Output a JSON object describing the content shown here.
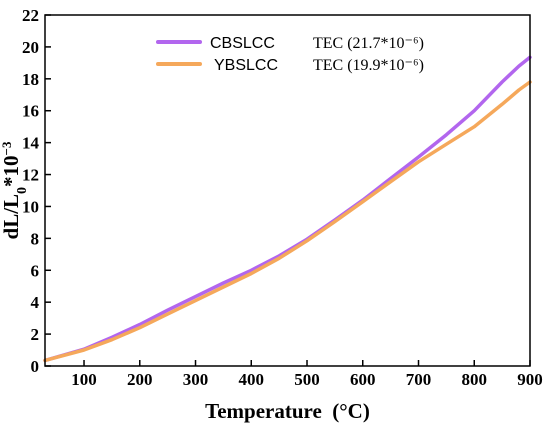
{
  "chart_data": {
    "type": "line",
    "xlabel": "Temperature  (°C)",
    "ylabel": {
      "a": "dL/L",
      "sub": "0",
      "b": "*10",
      "sup": "−3"
    },
    "xlim": [
      30,
      900
    ],
    "ylim": [
      0,
      22
    ],
    "xticks": [
      100,
      200,
      300,
      400,
      500,
      600,
      700,
      800,
      900
    ],
    "yticks": [
      0,
      2,
      4,
      6,
      8,
      10,
      12,
      14,
      16,
      18,
      20,
      22
    ],
    "legend": "top-center",
    "series": [
      {
        "name": "CBSLCC",
        "tec": "TEC (21.7*10⁻⁶)",
        "color": "#b266ee",
        "x": [
          30,
          100,
          150,
          200,
          250,
          300,
          350,
          400,
          450,
          500,
          550,
          600,
          650,
          700,
          750,
          800,
          850,
          880,
          900
        ],
        "y": [
          0.35,
          1.05,
          1.8,
          2.6,
          3.5,
          4.35,
          5.2,
          6.0,
          6.9,
          7.95,
          9.15,
          10.4,
          11.75,
          13.1,
          14.5,
          16.0,
          17.8,
          18.8,
          19.35
        ]
      },
      {
        "name": "YBSLCC",
        "tec": "TEC (19.9*10⁻⁶)",
        "color": "#f5a85b",
        "x": [
          30,
          100,
          150,
          200,
          250,
          300,
          350,
          400,
          450,
          500,
          550,
          600,
          650,
          700,
          750,
          800,
          850,
          880,
          900
        ],
        "y": [
          0.35,
          1.0,
          1.65,
          2.4,
          3.25,
          4.1,
          4.95,
          5.8,
          6.75,
          7.85,
          9.05,
          10.3,
          11.55,
          12.8,
          13.9,
          15.0,
          16.4,
          17.3,
          17.8
        ]
      }
    ]
  }
}
